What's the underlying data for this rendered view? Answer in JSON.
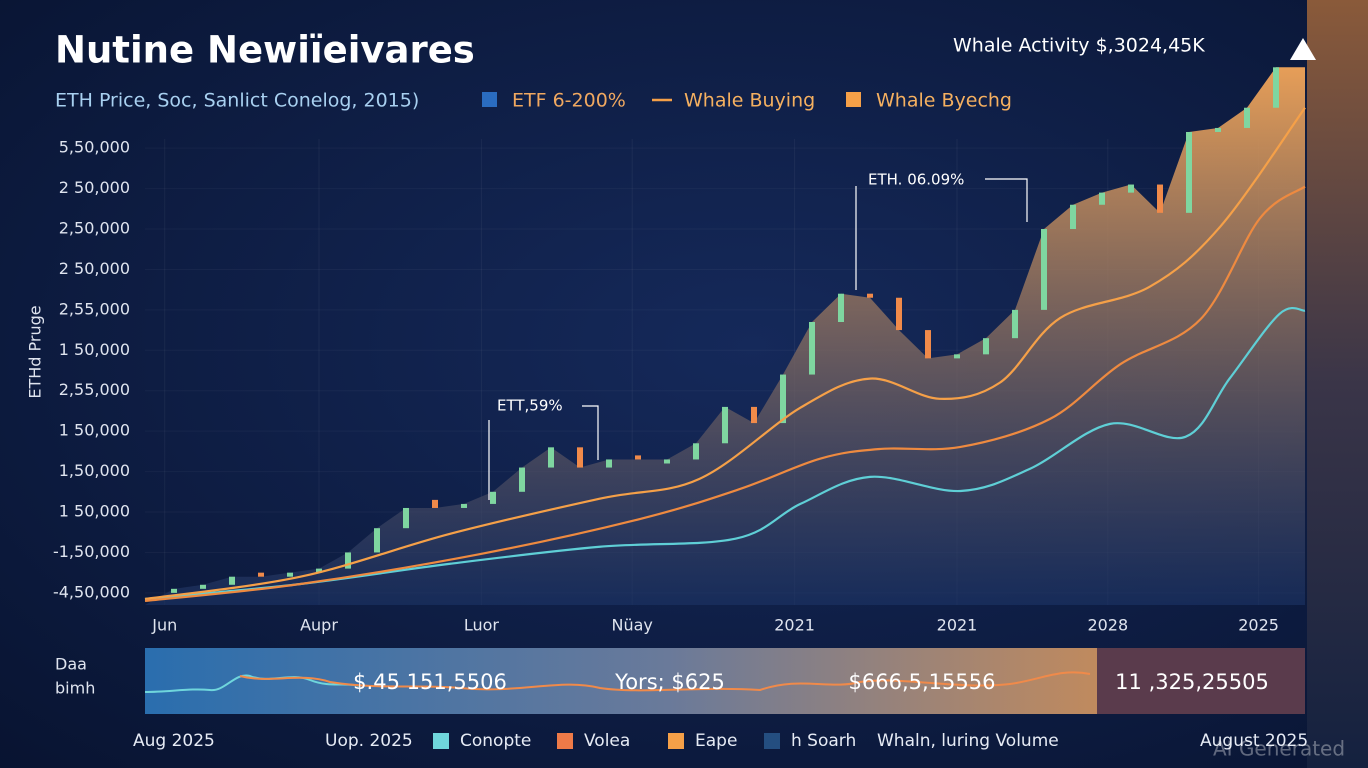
{
  "chart_data": {
    "type": "line",
    "title": "Nutine Newiïeivares",
    "subtitle": "ETH Price, Soc, Sanlict Conelog, 2015)",
    "top_right": "Whale Activity $,3024,45K",
    "y_axis_label": "ETHd Pruge",
    "xlim": [
      0,
      100
    ],
    "ylim": [
      -0.3,
      13.7
    ],
    "grid": true,
    "xticks": [
      {
        "value": 1.7,
        "label": "Jun"
      },
      {
        "value": 15,
        "label": "Aupr"
      },
      {
        "value": 29,
        "label": "Luor"
      },
      {
        "value": 42,
        "label": "Nüay"
      },
      {
        "value": 56,
        "label": "2021"
      },
      {
        "value": 70,
        "label": "2021"
      },
      {
        "value": 83,
        "label": "2028"
      },
      {
        "value": 96,
        "label": "2025"
      }
    ],
    "yticks": [
      {
        "value": 0,
        "label": "-4,50,000"
      },
      {
        "value": 1,
        "label": "-1,50,000"
      },
      {
        "value": 2,
        "label": "1 50,000"
      },
      {
        "value": 3,
        "label": "1,50,000"
      },
      {
        "value": 4,
        "label": "1 50,000"
      },
      {
        "value": 5,
        "label": "2,55,000"
      },
      {
        "value": 6,
        "label": "1 50,000"
      },
      {
        "value": 7,
        "label": "2,55,000"
      },
      {
        "value": 8,
        "label": "2 50,000"
      },
      {
        "value": 9,
        "label": "2,50,000"
      },
      {
        "value": 10,
        "label": "2 50,000"
      },
      {
        "value": 11,
        "label": "5,50,000"
      }
    ],
    "candles": {
      "up_color": "#7fd6a0",
      "down_color": "#f08a4a",
      "area_top_color": "#f2a559",
      "area_bottom_color": "#1c3466",
      "x": [
        2.5,
        5,
        7.5,
        10,
        12.5,
        15,
        17.5,
        20,
        22.5,
        25,
        27.5,
        30,
        32.5,
        35,
        37.5,
        40,
        42.5,
        45,
        47.5,
        50,
        52.5,
        55,
        57.5,
        60,
        62.5,
        65,
        67.5,
        70,
        72.5,
        75,
        77.5,
        80,
        82.5,
        85,
        87.5,
        90,
        92.5,
        95,
        97.5
      ],
      "open": [
        0,
        0.1,
        0.2,
        0.5,
        0.4,
        0.5,
        0.6,
        1.0,
        1.6,
        2.3,
        2.1,
        2.2,
        2.5,
        3.1,
        3.6,
        3.1,
        3.4,
        3.2,
        3.3,
        3.7,
        4.6,
        4.2,
        5.4,
        6.7,
        7.4,
        7.3,
        6.5,
        5.8,
        5.9,
        6.3,
        7.0,
        9.0,
        9.6,
        9.9,
        10.1,
        9.4,
        11.4,
        11.5,
        12.0
      ],
      "close": [
        0.1,
        0.2,
        0.4,
        0.4,
        0.5,
        0.6,
        1.0,
        1.6,
        2.1,
        2.1,
        2.2,
        2.5,
        3.1,
        3.6,
        3.1,
        3.3,
        3.3,
        3.3,
        3.7,
        4.6,
        4.2,
        5.4,
        6.7,
        7.4,
        7.3,
        6.5,
        5.8,
        5.9,
        6.3,
        7.0,
        9.0,
        9.6,
        9.9,
        10.1,
        9.4,
        11.4,
        11.5,
        12.0,
        13.0
      ]
    },
    "series": [
      {
        "name": "ETF 6-200%",
        "color": "#5fcfd6",
        "swatch_color": "#2a6cc0",
        "legend_marker": "square",
        "x": [
          0,
          13.4,
          26.3,
          39.2,
          50.9,
          56.5,
          62.5,
          70.3,
          76.3,
          83.2,
          89.7,
          93.5,
          97.8,
          100
        ],
        "values": [
          -0.15,
          0.22,
          0.72,
          1.14,
          1.34,
          2.2,
          2.87,
          2.52,
          3.07,
          4.18,
          3.86,
          5.3,
          6.9,
          6.98
        ]
      },
      {
        "name": "Whale Buying",
        "color": "#f5a048",
        "swatch_color": "#f5a048",
        "legend_marker": "line",
        "x": [
          0,
          13.4,
          26.3,
          39.2,
          47.8,
          56.5,
          62.5,
          68.5,
          73.7,
          78.9,
          86.6,
          92.7,
          100
        ],
        "values": [
          -0.15,
          0.4,
          1.46,
          2.33,
          2.82,
          4.58,
          5.3,
          4.8,
          5.2,
          6.8,
          7.57,
          9.06,
          12.0
        ]
      },
      {
        "name": "Whale Byechg",
        "color": "#ee8a40",
        "swatch_color": "#f5a048",
        "legend_marker": "square",
        "x": [
          0,
          13.4,
          28.9,
          42.7,
          51.3,
          58.2,
          63.4,
          70.3,
          78.0,
          84.1,
          91.0,
          96.1,
          100
        ],
        "values": [
          -0.2,
          0.22,
          0.96,
          1.83,
          2.57,
          3.32,
          3.56,
          3.61,
          4.3,
          5.66,
          6.77,
          9.26,
          10.05
        ]
      }
    ],
    "annotations": [
      "ETH. 06.09%",
      "ETT,59%"
    ]
  },
  "bottom_panel": {
    "label_lines": [
      "Daa",
      "bimh"
    ],
    "values": [
      "$.45 151,5506",
      "Yors; $625",
      "$666,5,15556",
      "11 ,325,25505"
    ]
  },
  "footer": {
    "left_date": "Aug 2025",
    "mid_date": "Uop. 2025",
    "legend": [
      {
        "label": "Conopte",
        "color": "#6fd6dc"
      },
      {
        "label": "Volea",
        "color": "#ee7a48"
      },
      {
        "label": "Eape",
        "color": "#f5a048"
      },
      {
        "label": "h Soarh",
        "color": "#244e80"
      }
    ],
    "extra": "Whaln, luring Volume",
    "right_date": "August 2025"
  },
  "watermark": "AI Generated"
}
